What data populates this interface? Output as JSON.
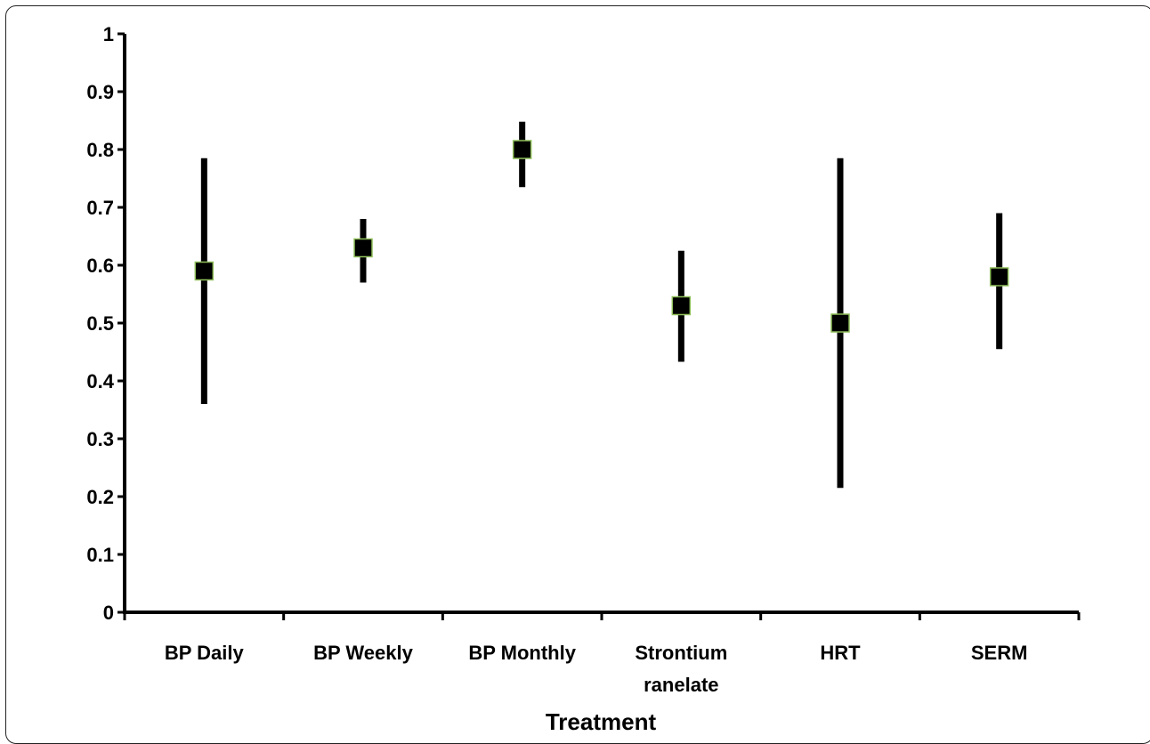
{
  "chart_data": {
    "type": "scatter",
    "title": "",
    "xlabel": "Treatment",
    "ylabel": "",
    "ylim": [
      0,
      1
    ],
    "yticks": [
      "0",
      "0.1",
      "0.2",
      "0.3",
      "0.4",
      "0.5",
      "0.6",
      "0.7",
      "0.8",
      "0.9",
      "1"
    ],
    "categories": [
      [
        "BP Daily"
      ],
      [
        "BP Weekly"
      ],
      [
        "BP Monthly"
      ],
      [
        "Strontium",
        "ranelate"
      ],
      [
        "HRT"
      ],
      [
        "SERM"
      ]
    ],
    "points": [
      {
        "value": 0.59,
        "lower": 0.36,
        "upper": 0.785
      },
      {
        "value": 0.63,
        "lower": 0.57,
        "upper": 0.68
      },
      {
        "value": 0.8,
        "lower": 0.735,
        "upper": 0.848
      },
      {
        "value": 0.53,
        "lower": 0.433,
        "upper": 0.625
      },
      {
        "value": 0.5,
        "lower": 0.215,
        "upper": 0.785
      },
      {
        "value": 0.58,
        "lower": 0.455,
        "upper": 0.69
      }
    ],
    "marker": "square",
    "colors": {
      "marker": "#000000",
      "marker_edge": "#8fbf5a",
      "errorbar": "#000000",
      "axis": "#000000"
    },
    "grid": false,
    "legend": "none"
  }
}
